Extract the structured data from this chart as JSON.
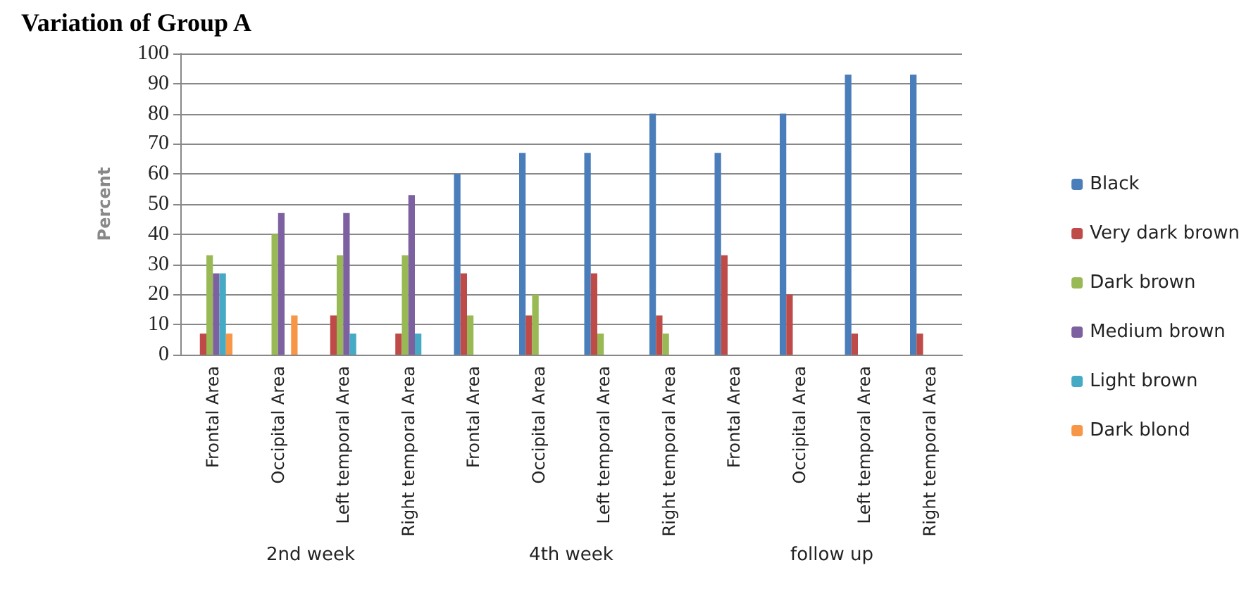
{
  "chart_data": {
    "type": "bar",
    "title": "Variation of Group A",
    "ylabel": "Percent",
    "categories": [
      "Frontal Area",
      "Occipital Area",
      "Left temporal Area",
      "Right temporal Area",
      "Frontal Area",
      "Occipital Area",
      "Left temporal Area",
      "Right temporal Area",
      "Frontal Area",
      "Occipital Area",
      "Left temporal Area",
      "Right temporal Area"
    ],
    "annotations": [
      "2nd week",
      "4th week",
      "follow up"
    ],
    "series": [
      {
        "name": "Black",
        "color": "#4a7ebb",
        "values": [
          0,
          0,
          0,
          0,
          60,
          67,
          67,
          80,
          67,
          80,
          93,
          93
        ]
      },
      {
        "name": "Very dark brown",
        "color": "#be4b48",
        "values": [
          7,
          0,
          13,
          7,
          27,
          13,
          27,
          13,
          33,
          20,
          7,
          7
        ]
      },
      {
        "name": "Dark brown",
        "color": "#98b954",
        "values": [
          33,
          40,
          33,
          33,
          13,
          20,
          7,
          7,
          0,
          0,
          0,
          0
        ]
      },
      {
        "name": "Medium brown",
        "color": "#7d60a0",
        "values": [
          27,
          47,
          47,
          53,
          0,
          0,
          0,
          0,
          0,
          0,
          0,
          0
        ]
      },
      {
        "name": "Light brown",
        "color": "#46aac5",
        "values": [
          27,
          0,
          7,
          7,
          0,
          0,
          0,
          0,
          0,
          0,
          0,
          0
        ]
      },
      {
        "name": "Dark blond",
        "color": "#f79646",
        "values": [
          7,
          13,
          0,
          0,
          0,
          0,
          0,
          0,
          0,
          0,
          0,
          0
        ]
      }
    ],
    "ylim": [
      0,
      100
    ],
    "yticks": [
      0,
      10,
      20,
      30,
      40,
      50,
      60,
      70,
      80,
      90,
      100
    ],
    "grid": "y",
    "legend": "right"
  }
}
